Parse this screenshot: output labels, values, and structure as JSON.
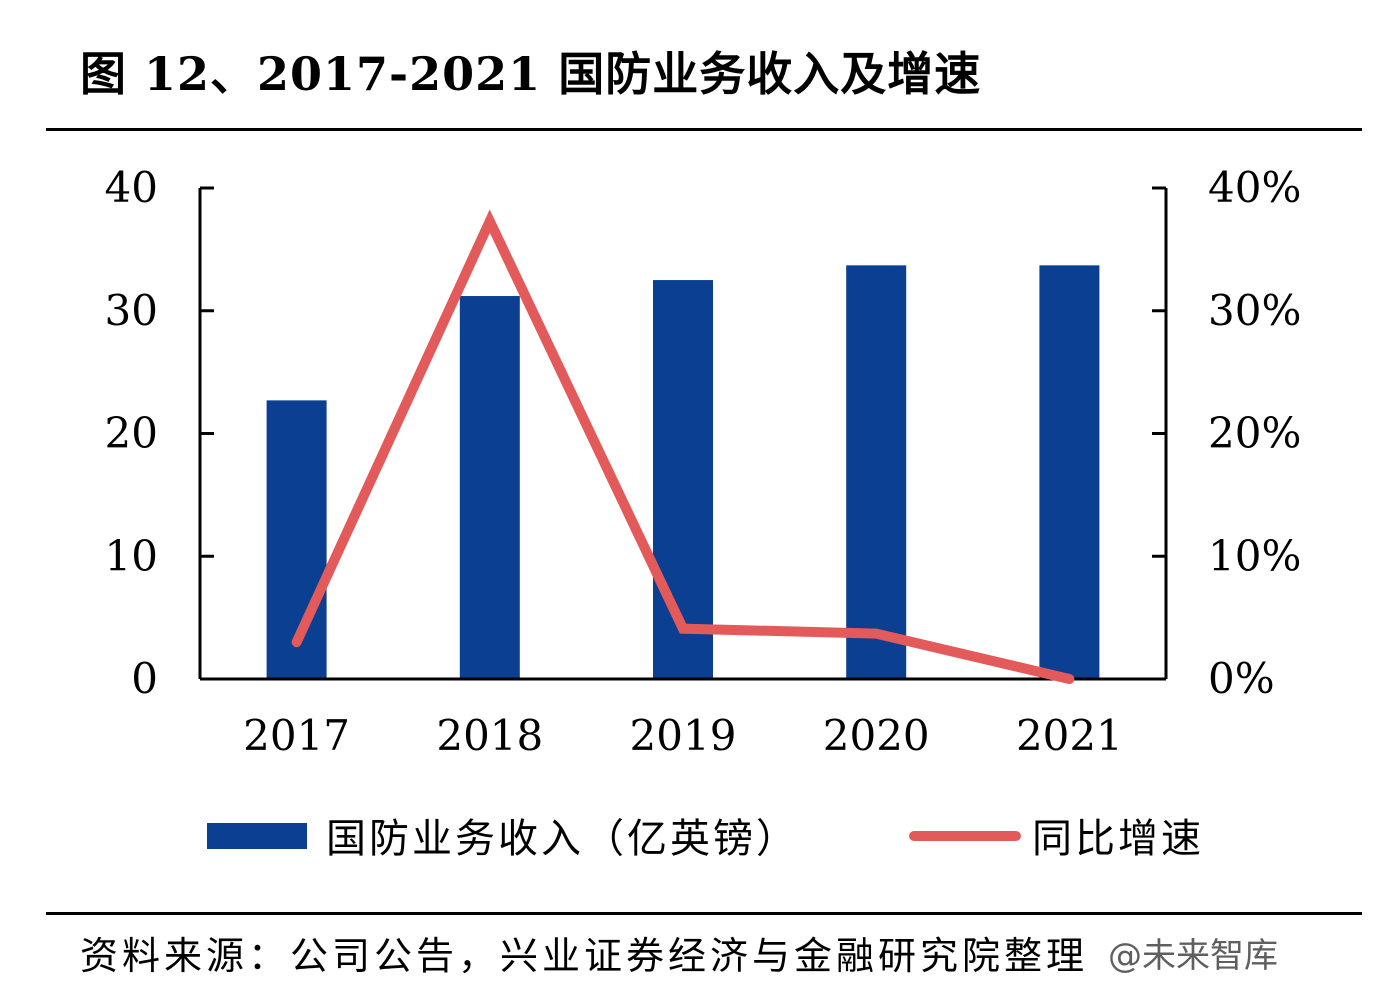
{
  "header": {
    "title": "图  12、2017-2021 国防业务收入及增速"
  },
  "footer": {
    "source": "资料来源：公司公告，兴业证券经济与金融研究院整理",
    "watermark": "@未来智库"
  },
  "colors": {
    "bar": "#0b3f91",
    "line": "#e35a5a",
    "axis": "#000000"
  },
  "chart_data": {
    "type": "bar",
    "title": "",
    "categories": [
      "2017",
      "2018",
      "2019",
      "2020",
      "2021"
    ],
    "series": [
      {
        "name": "国防业务收入（亿英镑）",
        "type": "bar",
        "axis": "left",
        "values": [
          22.7,
          31.2,
          32.5,
          33.7,
          33.7
        ]
      },
      {
        "name": "同比增速",
        "type": "line",
        "axis": "right",
        "values": [
          0.03,
          0.373,
          0.041,
          0.037,
          0.0
        ]
      }
    ],
    "y_left": {
      "min": 0,
      "max": 40,
      "ticks": [
        "0",
        "10",
        "20",
        "30",
        "40"
      ],
      "tick_values": [
        0,
        10,
        20,
        30,
        40
      ]
    },
    "y_right": {
      "min": 0,
      "max": 0.4,
      "ticks": [
        "0%",
        "10%",
        "20%",
        "30%",
        "40%"
      ],
      "tick_values": [
        0,
        0.1,
        0.2,
        0.3,
        0.4
      ]
    },
    "grid": false,
    "legend_position": "bottom"
  }
}
